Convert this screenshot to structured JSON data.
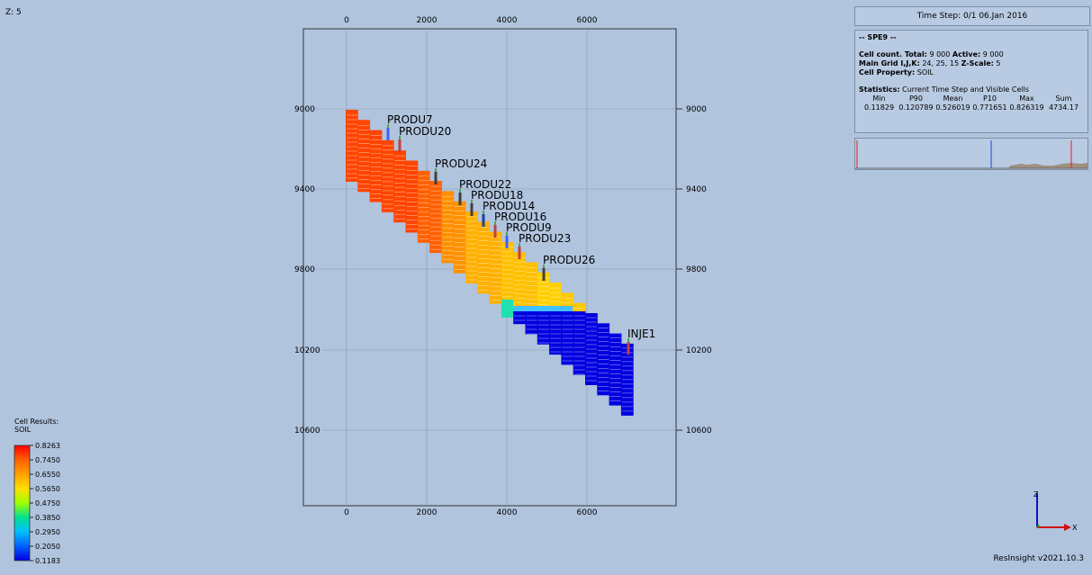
{
  "view": {
    "z_label": "Z: 5",
    "version": "ResInsight v2021.10.3"
  },
  "time_step": "Time Step: 0/1 06.Jan 2016",
  "info": {
    "case_name": "-- SPE9 --",
    "cell_count_label": "Cell count. Total:",
    "cell_count_total": "9 000",
    "active_label": "Active:",
    "active_count": "9 000",
    "main_grid_label": "Main Grid I,J,K:",
    "main_grid_value": "24, 25, 15",
    "zscale_label": "Z-Scale:",
    "zscale_value": "5",
    "cell_property_label": "Cell Property:",
    "cell_property_value": "SOIL",
    "statistics_label": "Statistics:",
    "statistics_value": "Current Time Step and Visible Cells",
    "stats_headers": [
      "Min",
      "P90",
      "Mean",
      "P10",
      "Max",
      "Sum"
    ],
    "stats_values": [
      "0.11829",
      "0.120789",
      "0.526019",
      "0.771651",
      "0.826319",
      "4734.17"
    ]
  },
  "legend": {
    "title_line1": "Cell Results:",
    "title_line2": "SOIL",
    "labels": [
      "0.8263",
      "0.7450",
      "0.6550",
      "0.5650",
      "0.4750",
      "0.3850",
      "0.2950",
      "0.2050",
      "0.1183"
    ],
    "colors": [
      "#ff0000",
      "#ff6000",
      "#ffa000",
      "#ffe000",
      "#a0ff00",
      "#00e090",
      "#00c0ff",
      "#0060ff",
      "#0000e0"
    ]
  },
  "axes": {
    "x_ticks": [
      "0",
      "2000",
      "4000",
      "6000"
    ],
    "y_ticks": [
      "9000",
      "9400",
      "9800",
      "10200",
      "10600"
    ]
  },
  "wells": [
    {
      "name": "PRODU7",
      "color": "#4060ff"
    },
    {
      "name": "PRODU20",
      "color": "#c04040"
    },
    {
      "name": "PRODU24",
      "color": "#404040"
    },
    {
      "name": "PRODU22",
      "color": "#404040"
    },
    {
      "name": "PRODU18",
      "color": "#404040"
    },
    {
      "name": "PRODU14",
      "color": "#2040a0"
    },
    {
      "name": "PRODU16",
      "color": "#c04040"
    },
    {
      "name": "PRODU9",
      "color": "#4060ff"
    },
    {
      "name": "PRODU23",
      "color": "#c04040"
    },
    {
      "name": "PRODU26",
      "color": "#404040"
    },
    {
      "name": "INJE1",
      "color": "#c04040"
    }
  ],
  "triad": {
    "z": "Z",
    "x": "X"
  }
}
